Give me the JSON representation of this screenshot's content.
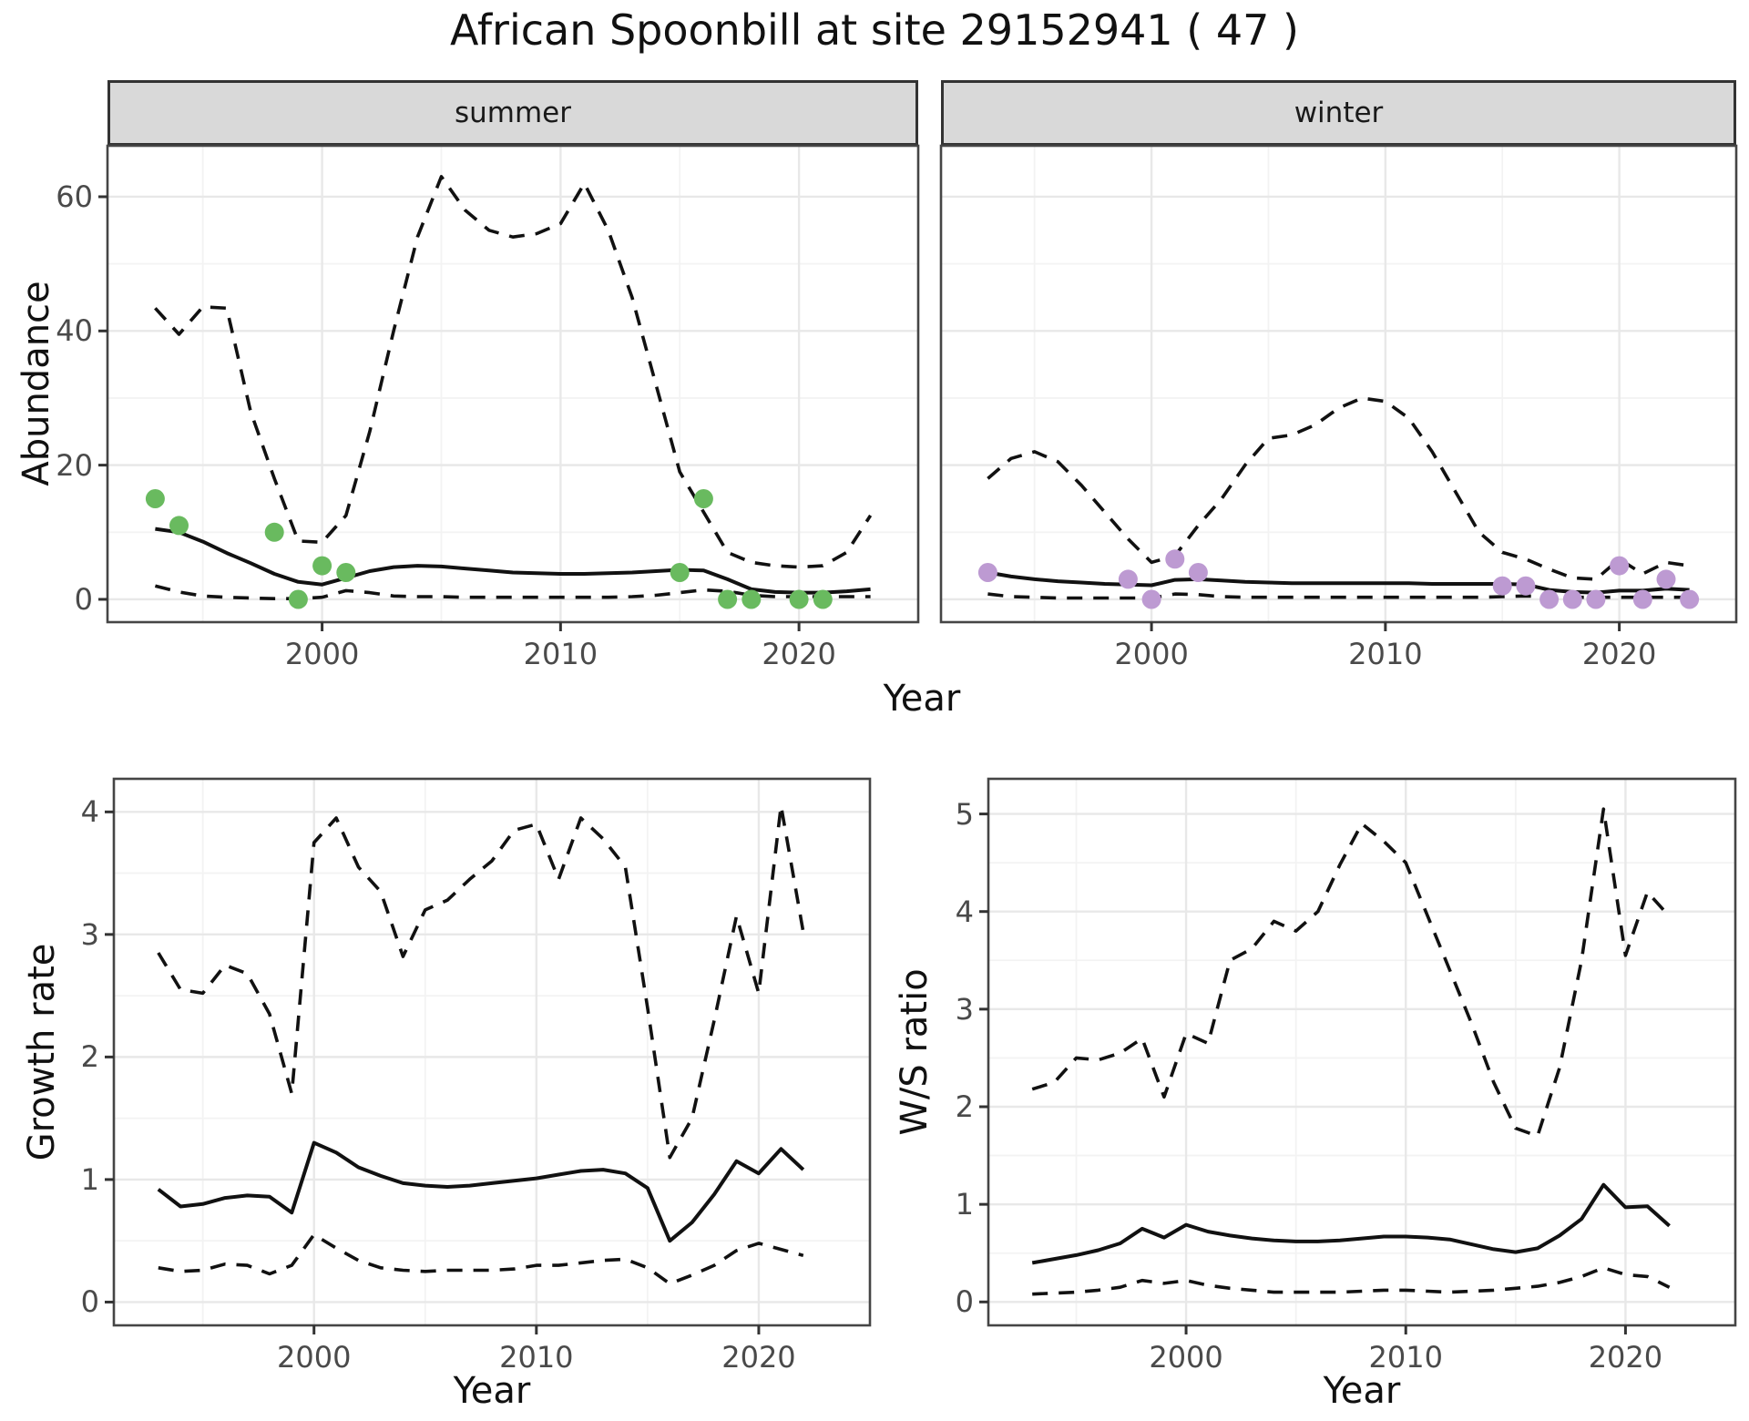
{
  "title": "African Spoonbill at site 29152941 ( 47 )",
  "colors": {
    "summer_points": "#69ba5f",
    "winter_points": "#bd9ad2",
    "line": "#111111",
    "strip_background": "#d9d9d9",
    "strip_border": "#333333",
    "panel_border": "#454545",
    "grid_major": "#e8e8e8",
    "grid_minor": "#f3f3f3",
    "axis_text": "#4a4a4a"
  },
  "chart_data": {
    "type": "line",
    "figure_title": "African Spoonbill at site 29152941 ( 47 )",
    "legend_position": "none",
    "grid": "on",
    "panels": [
      {
        "name": "abundance-summer",
        "facet_label": "summer",
        "ylabel": "Abundance",
        "xlabel": "Year",
        "x_ticks": [
          "2000",
          "2010",
          "2020"
        ],
        "y_ticks": [
          "0",
          "20",
          "40",
          "60"
        ],
        "xlim": [
          1991,
          2025
        ],
        "ylim": [
          -3.4,
          67.6
        ],
        "years": [
          1993,
          1994,
          1995,
          1996,
          1997,
          1998,
          1999,
          2000,
          2001,
          2002,
          2003,
          2004,
          2005,
          2006,
          2007,
          2008,
          2009,
          2010,
          2011,
          2012,
          2013,
          2014,
          2015,
          2016,
          2017,
          2018,
          2019,
          2020,
          2021,
          2022,
          2023
        ],
        "median": [
          10.5,
          10,
          8.6,
          6.9,
          5.4,
          3.8,
          2.6,
          2.2,
          3.2,
          4.2,
          4.8,
          5.0,
          4.9,
          4.6,
          4.3,
          4.0,
          3.9,
          3.8,
          3.8,
          3.9,
          4.0,
          4.2,
          4.4,
          4.3,
          3.0,
          1.5,
          1.1,
          1.0,
          1.0,
          1.2,
          1.5
        ],
        "upper": [
          43.4,
          39.5,
          43.6,
          43.4,
          28,
          18,
          8.7,
          8.5,
          12.5,
          25,
          40,
          54,
          63,
          58,
          55,
          54,
          54.5,
          56,
          62,
          55,
          45,
          32,
          19,
          13,
          7,
          5.5,
          5,
          4.8,
          5,
          7,
          12.5
        ],
        "lower": [
          2,
          1.1,
          0.5,
          0.3,
          0.2,
          0.1,
          0.1,
          0.3,
          1.3,
          1.0,
          0.5,
          0.4,
          0.4,
          0.3,
          0.3,
          0.3,
          0.3,
          0.3,
          0.3,
          0.3,
          0.4,
          0.6,
          1.0,
          1.4,
          1.2,
          0.6,
          0.4,
          0.4,
          0.4,
          0.4,
          0.4
        ],
        "points": {
          "color": "#69ba5f",
          "years": [
            1993,
            1994,
            1998,
            1999,
            2000,
            2001,
            2015,
            2016,
            2017,
            2018,
            2020,
            2021
          ],
          "values": [
            15,
            11,
            10,
            0,
            5,
            4,
            4,
            15,
            0,
            0,
            0,
            0
          ]
        }
      },
      {
        "name": "abundance-winter",
        "facet_label": "winter",
        "ylabel": "Abundance",
        "xlabel": "Year",
        "x_ticks": [
          "2000",
          "2010",
          "2020"
        ],
        "y_ticks": [
          "0",
          "20",
          "40",
          "60"
        ],
        "xlim": [
          1991,
          2025
        ],
        "ylim": [
          -3.4,
          67.6
        ],
        "years": [
          1993,
          1994,
          1995,
          1996,
          1997,
          1998,
          1999,
          2000,
          2001,
          2002,
          2003,
          2004,
          2005,
          2006,
          2007,
          2008,
          2009,
          2010,
          2011,
          2012,
          2013,
          2014,
          2015,
          2016,
          2017,
          2018,
          2019,
          2020,
          2021,
          2022,
          2023
        ],
        "median": [
          4.0,
          3.4,
          3.0,
          2.7,
          2.5,
          2.3,
          2.2,
          2.1,
          2.9,
          3.0,
          2.8,
          2.6,
          2.5,
          2.4,
          2.4,
          2.4,
          2.4,
          2.4,
          2.4,
          2.3,
          2.3,
          2.3,
          2.3,
          2.2,
          1.4,
          1.1,
          1.0,
          1.3,
          1.3,
          1.6,
          1.4
        ],
        "upper": [
          18,
          21,
          22,
          20.5,
          17,
          13,
          9,
          5.5,
          6.5,
          11,
          15,
          20,
          24,
          24.5,
          26,
          28.5,
          30,
          29.5,
          27,
          22,
          16,
          10,
          7,
          6,
          4.5,
          3.2,
          3.0,
          6,
          3.8,
          5.5,
          5
        ],
        "lower": [
          0.8,
          0.4,
          0.3,
          0.2,
          0.2,
          0.2,
          0.2,
          0.2,
          0.8,
          0.7,
          0.4,
          0.3,
          0.3,
          0.3,
          0.3,
          0.3,
          0.3,
          0.3,
          0.3,
          0.3,
          0.3,
          0.3,
          0.4,
          0.5,
          0.4,
          0.3,
          0.3,
          0.3,
          0.3,
          0.3,
          0.3
        ],
        "points": {
          "color": "#bd9ad2",
          "years": [
            1993,
            1999,
            2000,
            2001,
            2002,
            2015,
            2016,
            2017,
            2018,
            2019,
            2020,
            2021,
            2022,
            2023
          ],
          "values": [
            4,
            3,
            0,
            6,
            4,
            2,
            2,
            0,
            0,
            0,
            5,
            0,
            3,
            0
          ]
        }
      },
      {
        "name": "growth-rate",
        "facet_label": "",
        "ylabel": "Growth rate",
        "xlabel": "Year",
        "x_ticks": [
          "2000",
          "2010",
          "2020"
        ],
        "y_ticks": [
          "0",
          "1",
          "2",
          "3",
          "4"
        ],
        "xlim": [
          1991,
          2025
        ],
        "ylim": [
          -0.19,
          4.27
        ],
        "years": [
          1993,
          1994,
          1995,
          1996,
          1997,
          1998,
          1999,
          2000,
          2001,
          2002,
          2003,
          2004,
          2005,
          2006,
          2007,
          2008,
          2009,
          2010,
          2011,
          2012,
          2013,
          2014,
          2015,
          2016,
          2017,
          2018,
          2019,
          2020,
          2021,
          2022
        ],
        "median": [
          0.92,
          0.78,
          0.8,
          0.85,
          0.87,
          0.86,
          0.73,
          1.3,
          1.22,
          1.1,
          1.03,
          0.97,
          0.95,
          0.94,
          0.95,
          0.97,
          0.99,
          1.01,
          1.04,
          1.07,
          1.08,
          1.05,
          0.93,
          0.5,
          0.65,
          0.88,
          1.15,
          1.05,
          1.25,
          1.08
        ],
        "upper": [
          2.85,
          2.55,
          2.52,
          2.75,
          2.68,
          2.35,
          1.7,
          3.75,
          3.95,
          3.55,
          3.35,
          2.82,
          3.2,
          3.28,
          3.45,
          3.6,
          3.85,
          3.9,
          3.45,
          3.95,
          3.78,
          3.55,
          2.4,
          1.18,
          1.5,
          2.3,
          3.15,
          2.52,
          4.05,
          3.02
        ],
        "lower": [
          0.28,
          0.25,
          0.26,
          0.31,
          0.3,
          0.23,
          0.3,
          0.55,
          0.44,
          0.34,
          0.28,
          0.26,
          0.25,
          0.26,
          0.26,
          0.26,
          0.27,
          0.3,
          0.3,
          0.32,
          0.34,
          0.35,
          0.28,
          0.15,
          0.22,
          0.3,
          0.42,
          0.48,
          0.43,
          0.38
        ],
        "points": null
      },
      {
        "name": "ws-ratio",
        "facet_label": "",
        "ylabel": "W/S ratio",
        "xlabel": "Year",
        "x_ticks": [
          "2000",
          "2010",
          "2020"
        ],
        "y_ticks": [
          "0",
          "1",
          "2",
          "3",
          "4",
          "5"
        ],
        "xlim": [
          1991,
          2025
        ],
        "ylim": [
          -0.24,
          5.36
        ],
        "years": [
          1993,
          1994,
          1995,
          1996,
          1997,
          1998,
          1999,
          2000,
          2001,
          2002,
          2003,
          2004,
          2005,
          2006,
          2007,
          2008,
          2009,
          2010,
          2011,
          2012,
          2013,
          2014,
          2015,
          2016,
          2017,
          2018,
          2019,
          2020,
          2021,
          2022
        ],
        "median": [
          0.4,
          0.44,
          0.48,
          0.53,
          0.6,
          0.75,
          0.66,
          0.79,
          0.72,
          0.68,
          0.65,
          0.63,
          0.62,
          0.62,
          0.63,
          0.65,
          0.67,
          0.67,
          0.66,
          0.64,
          0.59,
          0.54,
          0.51,
          0.55,
          0.68,
          0.85,
          1.2,
          0.97,
          0.98,
          0.78
        ],
        "upper": [
          2.18,
          2.25,
          2.5,
          2.48,
          2.55,
          2.7,
          2.1,
          2.75,
          2.65,
          3.5,
          3.62,
          3.9,
          3.8,
          4.0,
          4.48,
          4.9,
          4.72,
          4.5,
          3.95,
          3.4,
          2.85,
          2.25,
          1.78,
          1.7,
          2.4,
          3.5,
          5.05,
          3.55,
          4.2,
          3.95
        ],
        "lower": [
          0.08,
          0.09,
          0.1,
          0.12,
          0.15,
          0.22,
          0.19,
          0.22,
          0.17,
          0.14,
          0.12,
          0.1,
          0.1,
          0.1,
          0.1,
          0.11,
          0.12,
          0.12,
          0.11,
          0.1,
          0.11,
          0.12,
          0.14,
          0.16,
          0.2,
          0.26,
          0.35,
          0.28,
          0.26,
          0.15
        ],
        "points": null
      }
    ]
  }
}
